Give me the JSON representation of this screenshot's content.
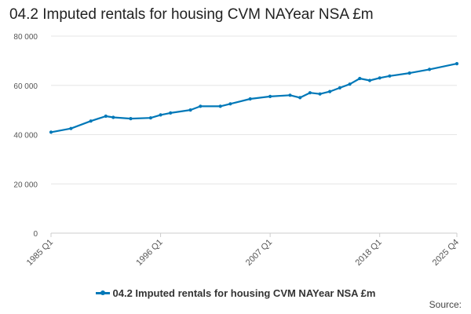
{
  "title": "04.2 Imputed rentals for housing CVM NAYear NSA £m",
  "source_label": "Source:",
  "colors": {
    "series": "#0078b8",
    "grid": "#e6e6e6",
    "axis": "#cccccc"
  },
  "chart_data": {
    "type": "line",
    "title": "04.2 Imputed rentals for housing CVM NAYear NSA £m",
    "xlabel": "",
    "ylabel": "",
    "ylim": [
      0,
      80000
    ],
    "yticks": [
      0,
      20000,
      40000,
      60000,
      80000
    ],
    "ytick_labels": [
      "0",
      "20 000",
      "40 000",
      "60 000",
      "80 000"
    ],
    "xticks": [
      "1985 Q1",
      "1996 Q1",
      "2007 Q1",
      "2018 Q1",
      "2025 Q4"
    ],
    "legend": "bottom",
    "grid": true,
    "series": [
      {
        "name": "04.2 Imputed rentals for housing CVM NAYear NSA £m",
        "x": [
          "1985 Q1",
          "1987 Q1",
          "1989 Q1",
          "1990 Q3",
          "1991 Q2",
          "1993 Q1",
          "1995 Q1",
          "1996 Q1",
          "1997 Q1",
          "1999 Q1",
          "2000 Q1",
          "2002 Q1",
          "2003 Q1",
          "2005 Q1",
          "2007 Q1",
          "2009 Q1",
          "2010 Q1",
          "2011 Q1",
          "2012 Q1",
          "2013 Q1",
          "2014 Q1",
          "2015 Q1",
          "2016 Q1",
          "2017 Q1",
          "2018 Q1",
          "2019 Q1",
          "2021 Q1",
          "2023 Q1",
          "2025 Q4"
        ],
        "values": [
          41000,
          42500,
          45500,
          47500,
          47000,
          46500,
          46800,
          48000,
          48800,
          50000,
          51500,
          51500,
          52500,
          54500,
          55500,
          56000,
          55000,
          57000,
          56500,
          57500,
          59000,
          60500,
          62800,
          62000,
          63000,
          63800,
          65000,
          66500,
          68800
        ]
      }
    ]
  }
}
